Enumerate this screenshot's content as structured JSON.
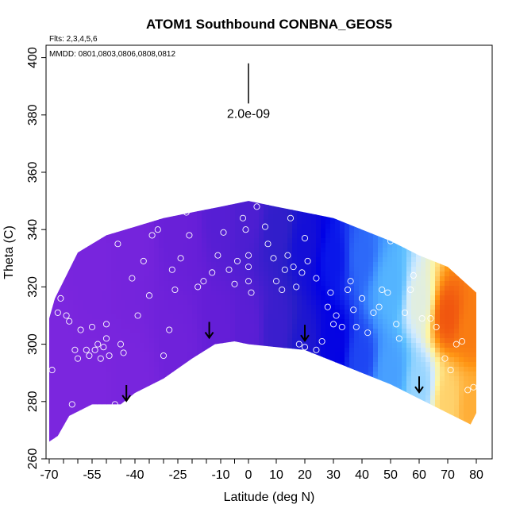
{
  "chart_data": {
    "type": "heatmap",
    "title": "ATOM1 Southbound CONBNA_GEOS5",
    "xlabel": "Latitude (deg N)",
    "ylabel": "Theta (C)",
    "xlim": [
      -70,
      85
    ],
    "ylim": [
      260,
      405
    ],
    "x_ticks": [
      -70,
      -55,
      -40,
      -25,
      -10,
      0,
      10,
      20,
      30,
      40,
      50,
      60,
      70,
      80
    ],
    "x_tick_labels": [
      "-70",
      "-55",
      "-40",
      "-25",
      "-10",
      "0",
      "10",
      "20",
      "30",
      "40",
      "50",
      "60",
      "70",
      "80"
    ],
    "x_minor_ticks": [
      -65,
      -60,
      -50,
      -45,
      -35,
      -30,
      -20,
      -15,
      -5
    ],
    "y_ticks": [
      260,
      280,
      300,
      320,
      340,
      360,
      380,
      400
    ],
    "y_tick_labels": [
      "260",
      "280",
      "300",
      "320",
      "340",
      "360",
      "380",
      "400"
    ],
    "notes": {
      "flights": "Flts: 2,3,4,5,6",
      "dates": "MMDD: 0801,0803,0806,0808,0812"
    },
    "scale_bar": {
      "label": "2.0e-09",
      "x": 0,
      "y_top": 398,
      "y_bottom": 384
    },
    "colors": {
      "low": "#8a2be2",
      "mid": "#2525d8",
      "blue": "#0000ee",
      "light_blue": "#4db8ff",
      "pale": "#fff5a0",
      "orange": "#ff8800",
      "red": "#e01010",
      "arrow": "#000000",
      "marker": "#ffffff"
    },
    "upper_boundary": [
      [
        -70,
        309
      ],
      [
        -68,
        316
      ],
      [
        -60,
        332
      ],
      [
        -50,
        338
      ],
      [
        -40,
        341
      ],
      [
        -30,
        344
      ],
      [
        -20,
        346
      ],
      [
        -10,
        348
      ],
      [
        -5,
        349
      ],
      [
        0,
        350
      ],
      [
        10,
        348
      ],
      [
        20,
        346
      ],
      [
        30,
        344
      ],
      [
        40,
        340
      ],
      [
        50,
        336
      ],
      [
        60,
        331
      ],
      [
        70,
        327
      ],
      [
        80,
        318
      ],
      [
        80,
        288
      ]
    ],
    "lower_boundary": [
      [
        -70,
        266
      ],
      [
        -67,
        268
      ],
      [
        -63,
        275
      ],
      [
        -55,
        279
      ],
      [
        -45,
        279
      ],
      [
        -40,
        283
      ],
      [
        -30,
        288
      ],
      [
        -20,
        295
      ],
      [
        -12,
        300
      ],
      [
        -5,
        301
      ],
      [
        0,
        300
      ],
      [
        10,
        299
      ],
      [
        20,
        298
      ],
      [
        30,
        294
      ],
      [
        40,
        290
      ],
      [
        50,
        286
      ],
      [
        60,
        281
      ],
      [
        70,
        276
      ],
      [
        78,
        272
      ],
      [
        80,
        276
      ],
      [
        80,
        288
      ]
    ],
    "field_samples": [
      {
        "lat": -70,
        "theta": 290,
        "value": 0.1
      },
      {
        "lat": -70,
        "theta": 310,
        "value": 0.1
      },
      {
        "lat": -55,
        "theta": 285,
        "value": 0.1
      },
      {
        "lat": -55,
        "theta": 330,
        "value": 0.12
      },
      {
        "lat": -40,
        "theta": 290,
        "value": 0.12
      },
      {
        "lat": -40,
        "theta": 335,
        "value": 0.14
      },
      {
        "lat": -25,
        "theta": 300,
        "value": 0.18
      },
      {
        "lat": -25,
        "theta": 340,
        "value": 0.22
      },
      {
        "lat": -10,
        "theta": 305,
        "value": 0.25
      },
      {
        "lat": -10,
        "theta": 345,
        "value": 0.28
      },
      {
        "lat": 0,
        "theta": 305,
        "value": 0.27
      },
      {
        "lat": 0,
        "theta": 345,
        "value": 0.3
      },
      {
        "lat": 10,
        "theta": 305,
        "value": 0.34
      },
      {
        "lat": 10,
        "theta": 340,
        "value": 0.36
      },
      {
        "lat": 20,
        "theta": 300,
        "value": 0.4
      },
      {
        "lat": 20,
        "theta": 335,
        "value": 0.42
      },
      {
        "lat": 30,
        "theta": 300,
        "value": 0.45
      },
      {
        "lat": 30,
        "theta": 330,
        "value": 0.48
      },
      {
        "lat": 40,
        "theta": 295,
        "value": 0.52
      },
      {
        "lat": 40,
        "theta": 330,
        "value": 0.55
      },
      {
        "lat": 50,
        "theta": 290,
        "value": 0.62
      },
      {
        "lat": 50,
        "theta": 320,
        "value": 0.66
      },
      {
        "lat": 60,
        "theta": 285,
        "value": 0.72
      },
      {
        "lat": 60,
        "theta": 315,
        "value": 0.78
      },
      {
        "lat": 70,
        "theta": 280,
        "value": 0.85
      },
      {
        "lat": 70,
        "theta": 310,
        "value": 0.95
      },
      {
        "lat": 78,
        "theta": 278,
        "value": 0.88
      },
      {
        "lat": 78,
        "theta": 305,
        "value": 0.92
      }
    ],
    "observation_points": [
      [
        -69,
        291
      ],
      [
        -67,
        311
      ],
      [
        -66,
        316
      ],
      [
        -64,
        310
      ],
      [
        -63,
        308
      ],
      [
        -61,
        298
      ],
      [
        -60,
        295
      ],
      [
        -59,
        305
      ],
      [
        -57,
        298
      ],
      [
        -56,
        296
      ],
      [
        -55,
        306
      ],
      [
        -54,
        298
      ],
      [
        -53,
        300
      ],
      [
        -52,
        295
      ],
      [
        -51,
        299
      ],
      [
        -50,
        307
      ],
      [
        -50,
        302
      ],
      [
        -49,
        296
      ],
      [
        -46,
        335
      ],
      [
        -45,
        300
      ],
      [
        -44,
        297
      ],
      [
        -41,
        323
      ],
      [
        -39,
        310
      ],
      [
        -37,
        329
      ],
      [
        -35,
        317
      ],
      [
        -34,
        338
      ],
      [
        -32,
        340
      ],
      [
        -30,
        296
      ],
      [
        -28,
        305
      ],
      [
        -27,
        326
      ],
      [
        -26,
        319
      ],
      [
        -24,
        330
      ],
      [
        -22,
        346
      ],
      [
        -21,
        338
      ],
      [
        -18,
        320
      ],
      [
        -16,
        322
      ],
      [
        -13,
        325
      ],
      [
        -11,
        331
      ],
      [
        -9,
        339
      ],
      [
        -7,
        326
      ],
      [
        -5,
        321
      ],
      [
        -4,
        329
      ],
      [
        -2,
        344
      ],
      [
        -1,
        340
      ],
      [
        0,
        331
      ],
      [
        0,
        327
      ],
      [
        0,
        322
      ],
      [
        1,
        318
      ],
      [
        3,
        348
      ],
      [
        6,
        341
      ],
      [
        7,
        335
      ],
      [
        9,
        330
      ],
      [
        10,
        322
      ],
      [
        12,
        319
      ],
      [
        13,
        326
      ],
      [
        14,
        331
      ],
      [
        15,
        344
      ],
      [
        16,
        327
      ],
      [
        17,
        320
      ],
      [
        19,
        325
      ],
      [
        20,
        337
      ],
      [
        21,
        329
      ],
      [
        24,
        323
      ],
      [
        24,
        298
      ],
      [
        26,
        301
      ],
      [
        28,
        313
      ],
      [
        29,
        318
      ],
      [
        30,
        307
      ],
      [
        31,
        310
      ],
      [
        33,
        306
      ],
      [
        35,
        319
      ],
      [
        36,
        322
      ],
      [
        37,
        312
      ],
      [
        38,
        306
      ],
      [
        40,
        316
      ],
      [
        42,
        304
      ],
      [
        44,
        311
      ],
      [
        46,
        313
      ],
      [
        47,
        319
      ],
      [
        49,
        318
      ],
      [
        50,
        336
      ],
      [
        52,
        307
      ],
      [
        53,
        302
      ],
      [
        55,
        311
      ],
      [
        57,
        319
      ],
      [
        58,
        324
      ],
      [
        61,
        309
      ],
      [
        64,
        309
      ],
      [
        66,
        306
      ],
      [
        69,
        295
      ],
      [
        71,
        291
      ],
      [
        73,
        300
      ],
      [
        75,
        301
      ],
      [
        77,
        284
      ],
      [
        79,
        285
      ],
      [
        -12,
        283
      ],
      [
        -20,
        280
      ],
      [
        30,
        291
      ],
      [
        40,
        288
      ],
      [
        18,
        300
      ],
      [
        20,
        299
      ],
      [
        -40,
        277
      ],
      [
        -47,
        279
      ],
      [
        -62,
        279
      ]
    ],
    "down_arrows": [
      [
        -43,
        283
      ],
      [
        -14,
        305
      ],
      [
        20,
        304
      ],
      [
        60,
        286
      ]
    ]
  }
}
